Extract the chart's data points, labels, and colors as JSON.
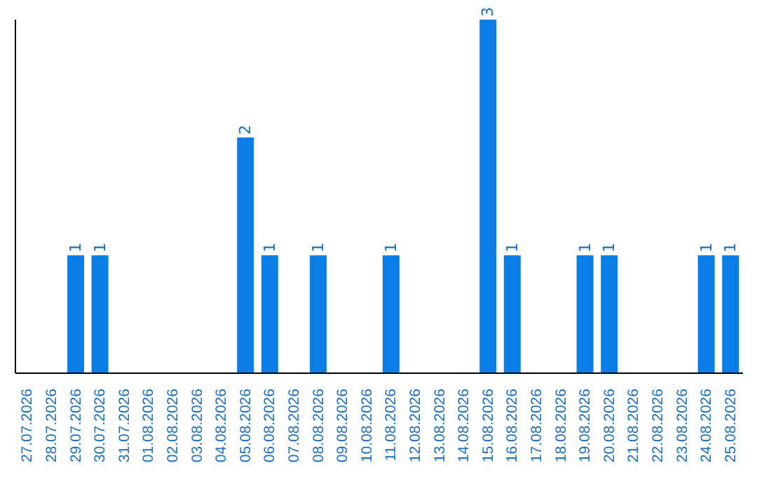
{
  "chart_data": {
    "type": "bar",
    "categories": [
      "27.07.2026",
      "28.07.2026",
      "29.07.2026",
      "30.07.2026",
      "31.07.2026",
      "01.08.2026",
      "02.08.2026",
      "03.08.2026",
      "04.08.2026",
      "05.08.2026",
      "06.08.2026",
      "07.08.2026",
      "08.08.2026",
      "09.08.2026",
      "10.08.2026",
      "11.08.2026",
      "12.08.2026",
      "13.08.2026",
      "14.08.2026",
      "15.08.2026",
      "16.08.2026",
      "17.08.2026",
      "18.08.2026",
      "19.08.2026",
      "20.08.2026",
      "21.08.2026",
      "22.08.2026",
      "23.08.2026",
      "24.08.2026",
      "25.08.2026"
    ],
    "values": [
      0,
      0,
      1,
      1,
      0,
      0,
      0,
      0,
      0,
      2,
      1,
      0,
      1,
      0,
      0,
      1,
      0,
      0,
      0,
      3,
      1,
      0,
      0,
      1,
      1,
      0,
      0,
      0,
      1,
      1
    ],
    "value_labels": [
      null,
      null,
      "1",
      "1",
      null,
      null,
      null,
      null,
      null,
      "2",
      "1",
      null,
      "1",
      null,
      null,
      "1",
      null,
      null,
      null,
      "3",
      "1",
      null,
      null,
      "1",
      "1",
      null,
      null,
      null,
      "1",
      "1"
    ],
    "color": "#0a7de6",
    "tick_labels": "x",
    "grid": false
  }
}
